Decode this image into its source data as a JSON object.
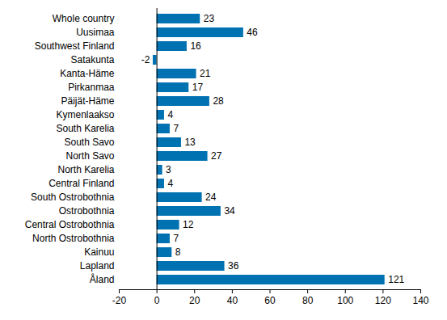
{
  "chart_data": {
    "type": "bar",
    "orientation": "horizontal",
    "categories": [
      "Whole country",
      "Uusimaa",
      "Southwest Finland",
      "Satakunta",
      "Kanta-Häme",
      "Pirkanmaa",
      "Päijät-Häme",
      "Kymenlaakso",
      "South Karelia",
      "South Savo",
      "North Savo",
      "North Karelia",
      "Central Finland",
      "South Ostrobothnia",
      "Ostrobothnia",
      "Central Ostrobothnia",
      "North Ostrobothnia",
      "Kainuu",
      "Lapland",
      "Åland"
    ],
    "values": [
      23,
      46,
      16,
      -2,
      21,
      17,
      28,
      4,
      7,
      13,
      27,
      3,
      4,
      24,
      34,
      12,
      7,
      8,
      36,
      121
    ],
    "color": "#0072b2",
    "xlim": [
      -20,
      140
    ],
    "xticks": [
      -20,
      0,
      20,
      40,
      60,
      80,
      100,
      120,
      140
    ],
    "grid": false,
    "data_labels": true
  }
}
